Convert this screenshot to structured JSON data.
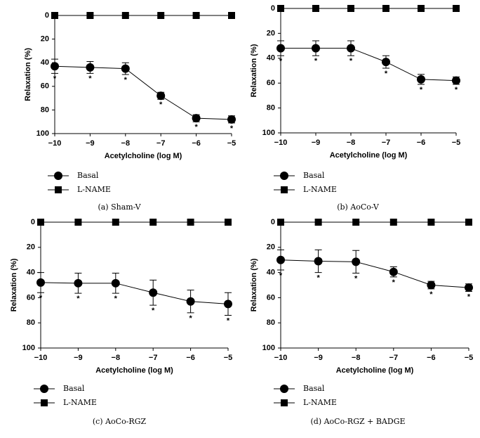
{
  "chart_data": [
    {
      "type": "line",
      "caption": "(a) Sham-V",
      "xlabel": "Acetylcholine (log M)",
      "ylabel": "Relaxation (%)",
      "x": [
        -10,
        -9,
        -8,
        -7,
        -6,
        -5
      ],
      "xlim": [
        -10,
        -5
      ],
      "xticks": [
        {
          "value": -10,
          "label": "−10"
        },
        {
          "value": -9,
          "label": "−9"
        },
        {
          "value": -8,
          "label": "−8"
        },
        {
          "value": -7,
          "label": "−7"
        },
        {
          "value": -6,
          "label": "−6"
        },
        {
          "value": -5,
          "label": "−5"
        }
      ],
      "ylim": [
        0,
        100
      ],
      "yticks": [
        0,
        20,
        40,
        60,
        80,
        100
      ],
      "y_inverted": true,
      "series": [
        {
          "name": "Basal",
          "marker": "circle",
          "color": "#000000",
          "values": [
            43,
            44,
            45,
            68,
            87,
            88
          ],
          "errors": [
            6,
            5,
            5,
            3,
            3,
            3
          ],
          "significance": [
            "*",
            "*",
            "*",
            "*",
            "*",
            "*"
          ]
        },
        {
          "name": "L-NAME",
          "marker": "square",
          "color": "#000000",
          "values": [
            0,
            0,
            0,
            0,
            0,
            0
          ]
        }
      ]
    },
    {
      "type": "line",
      "caption": "(b) AoCo-V",
      "xlabel": "Acetylcholine (log M)",
      "ylabel": "Relaxation (%)",
      "x": [
        -10,
        -9,
        -8,
        -7,
        -6,
        -5
      ],
      "xlim": [
        -10,
        -5
      ],
      "xticks": [
        {
          "value": -10,
          "label": "−10"
        },
        {
          "value": -9,
          "label": "−9"
        },
        {
          "value": -8,
          "label": "−8"
        },
        {
          "value": -7,
          "label": "−7"
        },
        {
          "value": -6,
          "label": "−6"
        },
        {
          "value": -5,
          "label": "−5"
        }
      ],
      "ylim": [
        0,
        100
      ],
      "yticks": [
        0,
        20,
        40,
        60,
        80,
        100
      ],
      "y_inverted": true,
      "series": [
        {
          "name": "Basal",
          "marker": "circle",
          "color": "#000000",
          "values": [
            32,
            32,
            32,
            43,
            57,
            58
          ],
          "errors": [
            6,
            6,
            6,
            5,
            4,
            3
          ],
          "significance": [
            "*",
            "*",
            "*",
            "*",
            "*",
            "*"
          ]
        },
        {
          "name": "L-NAME",
          "marker": "square",
          "color": "#000000",
          "values": [
            0,
            0,
            0,
            0,
            0,
            0
          ]
        }
      ]
    },
    {
      "type": "line",
      "caption": "(c) AoCo-RGZ",
      "xlabel": "Acetylcholine (log M)",
      "ylabel": "Relaxation (%)",
      "x": [
        -10,
        -9,
        -8,
        -7,
        -6,
        -5
      ],
      "xlim": [
        -10,
        -5
      ],
      "xticks": [
        {
          "value": -10,
          "label": "−10"
        },
        {
          "value": -9,
          "label": "−9"
        },
        {
          "value": -8,
          "label": "−8"
        },
        {
          "value": -7,
          "label": "−7"
        },
        {
          "value": -6,
          "label": "−6"
        },
        {
          "value": -5,
          "label": "−5"
        }
      ],
      "ylim": [
        0,
        100
      ],
      "yticks": [
        0,
        20,
        40,
        60,
        80,
        100
      ],
      "y_inverted": true,
      "series": [
        {
          "name": "Basal",
          "marker": "circle",
          "color": "#000000",
          "values": [
            48,
            48.5,
            48.5,
            56,
            63,
            65
          ],
          "errors": [
            8,
            8,
            8,
            10,
            9,
            9
          ],
          "significance": [
            "*",
            "*",
            "*",
            "*",
            "*",
            "*"
          ]
        },
        {
          "name": "L-NAME",
          "marker": "square",
          "color": "#000000",
          "values": [
            0,
            0,
            0,
            0,
            0,
            0
          ]
        }
      ]
    },
    {
      "type": "line",
      "caption": "(d) AoCo-RGZ + BADGE",
      "xlabel": "Acetylcholine (log M)",
      "ylabel": "Relaxation (%)",
      "x": [
        -10,
        -9,
        -8,
        -7,
        -6,
        -5
      ],
      "xlim": [
        -10,
        -5
      ],
      "xticks": [
        {
          "value": -10,
          "label": "−10"
        },
        {
          "value": -9,
          "label": "−9"
        },
        {
          "value": -8,
          "label": "−8"
        },
        {
          "value": -7,
          "label": "−7"
        },
        {
          "value": -6,
          "label": "−6"
        },
        {
          "value": -5,
          "label": "−5"
        }
      ],
      "ylim": [
        0,
        100
      ],
      "yticks": [
        0,
        20,
        40,
        60,
        80,
        100
      ],
      "y_inverted": true,
      "series": [
        {
          "name": "Basal",
          "marker": "circle",
          "color": "#000000",
          "values": [
            30,
            31,
            31.5,
            39.5,
            50,
            52
          ],
          "errors": [
            8,
            9,
            9,
            4,
            3,
            3
          ],
          "significance": [
            "*",
            "*",
            "*",
            "*",
            "*",
            "*"
          ]
        },
        {
          "name": "L-NAME",
          "marker": "square",
          "color": "#000000",
          "values": [
            0,
            0,
            0,
            0,
            0,
            0
          ]
        }
      ]
    }
  ]
}
